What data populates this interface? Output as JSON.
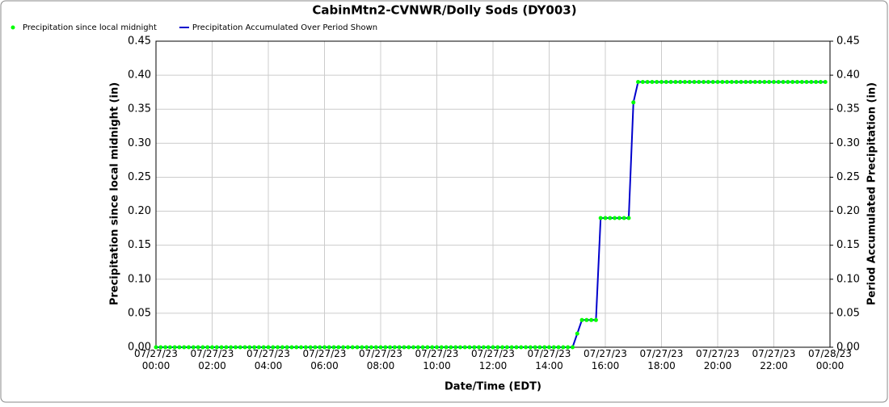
{
  "chart_data": {
    "type": "line",
    "title": "CabinMtn2-CVNWR/Dolly Sods (DY003)",
    "x_label": "Date/Time (EDT)",
    "y_label": "Precipitation since local midnight (in)",
    "y2_label": "Period Accumulated Precipitation (in)",
    "xlim": [
      "07/27/23 00:00",
      "07/28/23 00:00"
    ],
    "xticks": [
      "07/27/23 00:00",
      "07/27/23 02:00",
      "07/27/23 04:00",
      "07/27/23 06:00",
      "07/27/23 08:00",
      "07/27/23 10:00",
      "07/27/23 12:00",
      "07/27/23 14:00",
      "07/27/23 16:00",
      "07/27/23 18:00",
      "07/27/23 20:00",
      "07/27/23 22:00",
      "07/28/23 00:00"
    ],
    "ylim": [
      0,
      0.45
    ],
    "y2lim": [
      0,
      0.45
    ],
    "yticks": [
      {
        "value": 0,
        "label": "0.00"
      },
      {
        "value": 0.05,
        "label": "0.05"
      },
      {
        "value": 0.1,
        "label": "0.10"
      },
      {
        "value": 0.15,
        "label": "0.15"
      },
      {
        "value": 0.2,
        "label": "0.20"
      },
      {
        "value": 0.25,
        "label": "0.25"
      },
      {
        "value": 0.3,
        "label": "0.30"
      },
      {
        "value": 0.35,
        "label": "0.35"
      },
      {
        "value": 0.4,
        "label": "0.40"
      },
      {
        "value": 0.45,
        "label": "0.45"
      }
    ],
    "y2ticks": [
      {
        "value": 0,
        "label": "0.00"
      },
      {
        "value": 0.05,
        "label": "0.05"
      },
      {
        "value": 0.1,
        "label": "0.10"
      },
      {
        "value": 0.15,
        "label": "0.15"
      },
      {
        "value": 0.2,
        "label": "0.20"
      },
      {
        "value": 0.25,
        "label": "0.25"
      },
      {
        "value": 0.3,
        "label": "0.30"
      },
      {
        "value": 0.35,
        "label": "0.35"
      },
      {
        "value": 0.4,
        "label": "0.40"
      },
      {
        "value": 0.45,
        "label": "0.45"
      }
    ],
    "grid": true,
    "x": [
      "07/27/23 00:00",
      "07/27/23 00:10",
      "07/27/23 00:20",
      "07/27/23 00:30",
      "07/27/23 00:40",
      "07/27/23 00:50",
      "07/27/23 01:00",
      "07/27/23 01:10",
      "07/27/23 01:20",
      "07/27/23 01:30",
      "07/27/23 01:40",
      "07/27/23 01:50",
      "07/27/23 02:00",
      "07/27/23 02:10",
      "07/27/23 02:20",
      "07/27/23 02:30",
      "07/27/23 02:40",
      "07/27/23 02:50",
      "07/27/23 03:00",
      "07/27/23 03:10",
      "07/27/23 03:20",
      "07/27/23 03:30",
      "07/27/23 03:40",
      "07/27/23 03:50",
      "07/27/23 04:00",
      "07/27/23 04:10",
      "07/27/23 04:20",
      "07/27/23 04:30",
      "07/27/23 04:40",
      "07/27/23 04:50",
      "07/27/23 05:00",
      "07/27/23 05:10",
      "07/27/23 05:20",
      "07/27/23 05:30",
      "07/27/23 05:40",
      "07/27/23 05:50",
      "07/27/23 06:00",
      "07/27/23 06:10",
      "07/27/23 06:20",
      "07/27/23 06:30",
      "07/27/23 06:40",
      "07/27/23 06:50",
      "07/27/23 07:00",
      "07/27/23 07:10",
      "07/27/23 07:20",
      "07/27/23 07:30",
      "07/27/23 07:40",
      "07/27/23 07:50",
      "07/27/23 08:00",
      "07/27/23 08:10",
      "07/27/23 08:20",
      "07/27/23 08:30",
      "07/27/23 08:40",
      "07/27/23 08:50",
      "07/27/23 09:00",
      "07/27/23 09:10",
      "07/27/23 09:20",
      "07/27/23 09:30",
      "07/27/23 09:40",
      "07/27/23 09:50",
      "07/27/23 10:00",
      "07/27/23 10:10",
      "07/27/23 10:20",
      "07/27/23 10:30",
      "07/27/23 10:40",
      "07/27/23 10:50",
      "07/27/23 11:00",
      "07/27/23 11:10",
      "07/27/23 11:20",
      "07/27/23 11:30",
      "07/27/23 11:40",
      "07/27/23 11:50",
      "07/27/23 12:00",
      "07/27/23 12:10",
      "07/27/23 12:20",
      "07/27/23 12:30",
      "07/27/23 12:40",
      "07/27/23 12:50",
      "07/27/23 13:00",
      "07/27/23 13:10",
      "07/27/23 13:20",
      "07/27/23 13:30",
      "07/27/23 13:40",
      "07/27/23 13:50",
      "07/27/23 14:00",
      "07/27/23 14:10",
      "07/27/23 14:20",
      "07/27/23 14:30",
      "07/27/23 14:40",
      "07/27/23 14:50",
      "07/27/23 15:00",
      "07/27/23 15:10",
      "07/27/23 15:20",
      "07/27/23 15:30",
      "07/27/23 15:40",
      "07/27/23 15:50",
      "07/27/23 16:00",
      "07/27/23 16:10",
      "07/27/23 16:20",
      "07/27/23 16:30",
      "07/27/23 16:40",
      "07/27/23 16:50",
      "07/27/23 17:00",
      "07/27/23 17:10",
      "07/27/23 17:20",
      "07/27/23 17:30",
      "07/27/23 17:40",
      "07/27/23 17:50",
      "07/27/23 18:00",
      "07/27/23 18:10",
      "07/27/23 18:20",
      "07/27/23 18:30",
      "07/27/23 18:40",
      "07/27/23 18:50",
      "07/27/23 19:00",
      "07/27/23 19:10",
      "07/27/23 19:20",
      "07/27/23 19:30",
      "07/27/23 19:40",
      "07/27/23 19:50",
      "07/27/23 20:00",
      "07/27/23 20:10",
      "07/27/23 20:20",
      "07/27/23 20:30",
      "07/27/23 20:40",
      "07/27/23 20:50",
      "07/27/23 21:00",
      "07/27/23 21:10",
      "07/27/23 21:20",
      "07/27/23 21:30",
      "07/27/23 21:40",
      "07/27/23 21:50",
      "07/27/23 22:00",
      "07/27/23 22:10",
      "07/27/23 22:20",
      "07/27/23 22:30",
      "07/27/23 22:40",
      "07/27/23 22:50",
      "07/27/23 23:00",
      "07/27/23 23:10",
      "07/27/23 23:20",
      "07/27/23 23:30",
      "07/27/23 23:40",
      "07/27/23 23:50"
    ],
    "series": [
      {
        "name": "Precipitation since local midnight",
        "color": "#00ff00",
        "style": "dots",
        "axis": "y",
        "values": [
          0,
          0,
          0,
          0,
          0,
          0,
          0,
          0,
          0,
          0,
          0,
          0,
          0,
          0,
          0,
          0,
          0,
          0,
          0,
          0,
          0,
          0,
          0,
          0,
          0,
          0,
          0,
          0,
          0,
          0,
          0,
          0,
          0,
          0,
          0,
          0,
          0,
          0,
          0,
          0,
          0,
          0,
          0,
          0,
          0,
          0,
          0,
          0,
          0,
          0,
          0,
          0,
          0,
          0,
          0,
          0,
          0,
          0,
          0,
          0,
          0,
          0,
          0,
          0,
          0,
          0,
          0,
          0,
          0,
          0,
          0,
          0,
          0,
          0,
          0,
          0,
          0,
          0,
          0,
          0,
          0,
          0,
          0,
          0,
          0,
          0,
          0,
          0,
          0,
          0,
          0.02,
          0.04,
          0.04,
          0.04,
          0.04,
          0.19,
          0.19,
          0.19,
          0.19,
          0.19,
          0.19,
          0.19,
          0.36,
          0.39,
          0.39,
          0.39,
          0.39,
          0.39,
          0.39,
          0.39,
          0.39,
          0.39,
          0.39,
          0.39,
          0.39,
          0.39,
          0.39,
          0.39,
          0.39,
          0.39,
          0.39,
          0.39,
          0.39,
          0.39,
          0.39,
          0.39,
          0.39,
          0.39,
          0.39,
          0.39,
          0.39,
          0.39,
          0.39,
          0.39,
          0.39,
          0.39,
          0.39,
          0.39,
          0.39,
          0.39,
          0.39,
          0.39,
          0.39,
          0.39
        ]
      },
      {
        "name": "Precipitation Accumulated Over Period Shown",
        "color": "#0000cc",
        "style": "line",
        "axis": "y2",
        "values": [
          0,
          0,
          0,
          0,
          0,
          0,
          0,
          0,
          0,
          0,
          0,
          0,
          0,
          0,
          0,
          0,
          0,
          0,
          0,
          0,
          0,
          0,
          0,
          0,
          0,
          0,
          0,
          0,
          0,
          0,
          0,
          0,
          0,
          0,
          0,
          0,
          0,
          0,
          0,
          0,
          0,
          0,
          0,
          0,
          0,
          0,
          0,
          0,
          0,
          0,
          0,
          0,
          0,
          0,
          0,
          0,
          0,
          0,
          0,
          0,
          0,
          0,
          0,
          0,
          0,
          0,
          0,
          0,
          0,
          0,
          0,
          0,
          0,
          0,
          0,
          0,
          0,
          0,
          0,
          0,
          0,
          0,
          0,
          0,
          0,
          0,
          0,
          0,
          0,
          0,
          0.02,
          0.04,
          0.04,
          0.04,
          0.04,
          0.19,
          0.19,
          0.19,
          0.19,
          0.19,
          0.19,
          0.19,
          0.36,
          0.39,
          0.39,
          0.39,
          0.39,
          0.39,
          0.39,
          0.39,
          0.39,
          0.39,
          0.39,
          0.39,
          0.39,
          0.39,
          0.39,
          0.39,
          0.39,
          0.39,
          0.39,
          0.39,
          0.39,
          0.39,
          0.39,
          0.39,
          0.39,
          0.39,
          0.39,
          0.39,
          0.39,
          0.39,
          0.39,
          0.39,
          0.39,
          0.39,
          0.39,
          0.39,
          0.39,
          0.39,
          0.39,
          0.39,
          0.39,
          0.39
        ]
      }
    ]
  }
}
